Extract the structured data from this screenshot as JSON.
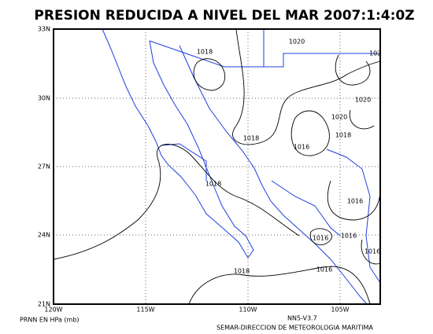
{
  "title": "PRESION REDUCIDA A NIVEL DEL MAR 2007:1:4:0Z",
  "lat_labels": [
    "33N",
    "30N",
    "27N",
    "24N",
    "21N"
  ],
  "lon_labels": [
    "120W",
    "115W",
    "110W",
    "105W"
  ],
  "contour_labels": [
    "1018",
    "1020",
    "102",
    "1020",
    "1020",
    "1018",
    "1016",
    "1018",
    "1018",
    "1016",
    "1016",
    "1016",
    "1016",
    "1018",
    "1016"
  ],
  "footer": {
    "variable": "PRNN EN HPa (mb)",
    "model": "NN5-V3.7",
    "source": "SEMAR-DIRECCION DE METEOROLOGIA MARITIMA"
  }
}
